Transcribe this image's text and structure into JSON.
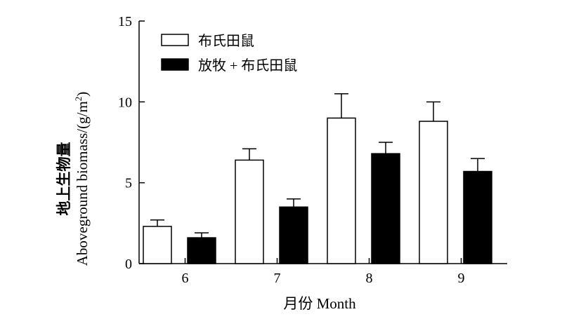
{
  "chart_data": {
    "type": "bar",
    "categories": [
      "6",
      "7",
      "8",
      "9"
    ],
    "series": [
      {
        "name": "布氏田鼠",
        "values": [
          2.3,
          6.4,
          9.0,
          8.8
        ],
        "errors": [
          0.4,
          0.7,
          1.5,
          1.2
        ],
        "fill": "#ffffff"
      },
      {
        "name": "放牧 + 布氏田鼠",
        "values": [
          1.6,
          3.5,
          6.8,
          5.7
        ],
        "errors": [
          0.3,
          0.5,
          0.7,
          0.8
        ],
        "fill": "#000000"
      }
    ],
    "xlabel": "月份 Month",
    "ylabel_cn": "地上生物量",
    "ylabel_en": "Aboveground biomass/(g/m",
    "ylabel_sup": "2",
    "ylabel_close": ")",
    "ylim": [
      0,
      15
    ],
    "yticks": [
      "0",
      "5",
      "10",
      "15"
    ],
    "yticks_values": [
      0,
      5,
      10,
      15
    ],
    "grid": false,
    "legend_position": "top-left",
    "colors": {
      "axis": "#000000",
      "bar_outline": "#000000"
    }
  }
}
